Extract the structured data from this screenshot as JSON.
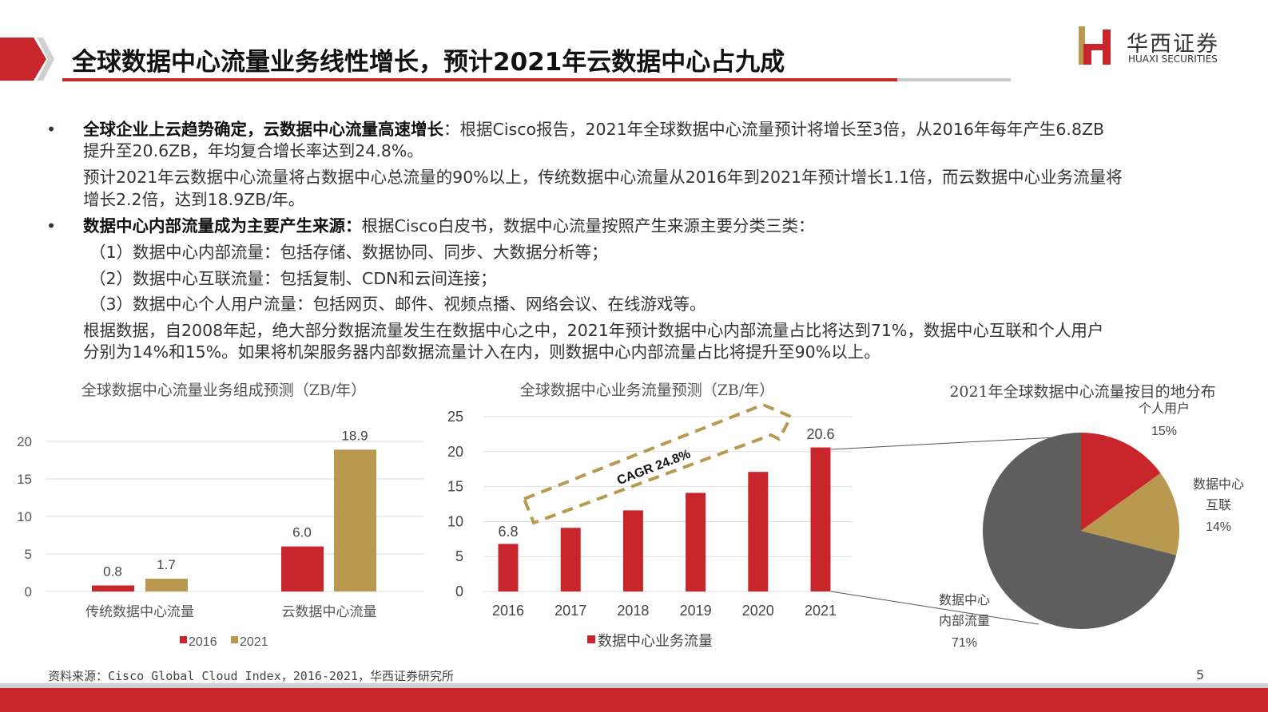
{
  "header": {
    "title": "全球数据中心流量业务线性增长，预计2021年云数据中心占九成",
    "logo_cn": "华西证券",
    "logo_en": "HUAXI SECURITIES",
    "accent": "#c8262b",
    "gold": "#b8994f"
  },
  "body": {
    "b1_bold": "全球企业上云趋势确定，云数据中心流量高速增长",
    "b1_text": "：根据Cisco报告，2021年全球数据中心流量预计将增长至3倍，从2016年每年产生6.8ZB",
    "b1_line2": "提升至20.6ZB，年均复合增长率达到24.8%。",
    "p2_line1": "预计2021年云数据中心流量将占数据中心总流量的90%以上，传统数据中心流量从2016年到2021年预计增长1.1倍，而云数据中心业务流量将",
    "p2_line2": "增长2.2倍，达到18.9ZB/年。",
    "b2_bold": "数据中心内部流量成为主要产生来源：",
    "b2_text": "根据Cisco白皮书，数据中心流量按照产生来源主要分类三类：",
    "item1": "（1）数据中心内部流量：包括存储、数据协同、同步、大数据分析等；",
    "item2": "（2）数据中心互联流量：包括复制、CDN和云间连接；",
    "item3": "（3）数据中心个人用户流量：包括网页、邮件、视频点播、网络会议、在线游戏等。",
    "p3_line1": "根据数据，自2008年起，绝大部分数据流量发生在数据中心之中，2021年预计数据中心内部流量占比将达到71%，数据中心互联和个人用户",
    "p3_line2": "分别为14%和15%。如果将机架服务器内部数据流量计入在内，则数据中心内部流量占比将提升至90%以上。"
  },
  "chart_data": [
    {
      "type": "bar",
      "title": "全球数据中心流量业务组成预测（ZB/年）",
      "categories": [
        "传统数据中心流量",
        "云数据中心流量"
      ],
      "series": [
        {
          "name": "2016",
          "values": [
            0.8,
            6.0
          ],
          "color": "#c8262b"
        },
        {
          "name": "2021",
          "values": [
            1.7,
            18.9
          ],
          "color": "#b8994f"
        }
      ],
      "ylim": [
        0,
        20
      ],
      "yticks": [
        0,
        5,
        10,
        15,
        20
      ],
      "data_labels": [
        "0.8",
        "6.0",
        "1.7",
        "18.9"
      ],
      "legend": "bottom",
      "grid": true
    },
    {
      "type": "bar",
      "title": "全球数据中心业务流量预测（ZB/年）",
      "categories": [
        "2016",
        "2017",
        "2018",
        "2019",
        "2020",
        "2021"
      ],
      "series": [
        {
          "name": "数据中心业务流量",
          "values": [
            6.8,
            9.1,
            11.6,
            14.1,
            17.1,
            20.6
          ],
          "color": "#c8262b"
        }
      ],
      "data_labels": [
        "6.8",
        "20.6"
      ],
      "ylim": [
        0,
        25
      ],
      "yticks": [
        0,
        5,
        10,
        15,
        20,
        25
      ],
      "annotation": "CAGR 24.8%",
      "legend": "bottom",
      "grid": true
    },
    {
      "type": "pie",
      "title": "2021年全球数据中心流量按目的地分布",
      "slices": [
        {
          "label": "个人用户",
          "value": 15,
          "text": "15%",
          "color": "#c8262b"
        },
        {
          "label": "数据中心互联",
          "value": 14,
          "text": "14%",
          "color": "#b8994f"
        },
        {
          "label": "数据中心内部流量",
          "value": 71,
          "text": "71%",
          "color": "#5e5e5e"
        }
      ]
    }
  ],
  "footer": {
    "source": "资料来源：Cisco Global Cloud Index，2016-2021，华西证券研究所",
    "page": "5"
  }
}
